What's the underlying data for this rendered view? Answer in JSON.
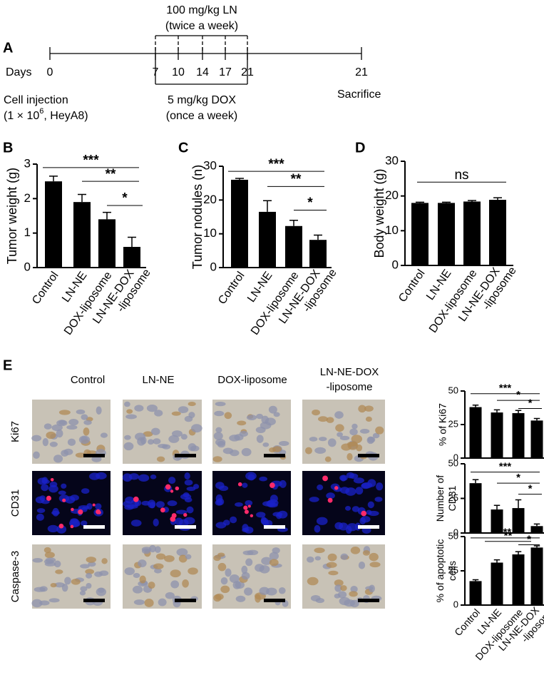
{
  "timeline": {
    "label": "A",
    "top_text": [
      "100 mg/kg LN",
      "(twice a week)"
    ],
    "axis_label": "Days",
    "days": [
      0,
      7,
      10,
      14,
      17,
      21,
      21
    ],
    "bottom_text": [
      "5 mg/kg DOX",
      "(once a week)"
    ],
    "start_text": [
      "Cell injection",
      "(1 × 10",
      "6",
      ", HeyA8)"
    ],
    "end_text": "Sacrifice"
  },
  "panel_labels": [
    "B",
    "C",
    "D",
    "E"
  ],
  "panel_e": {
    "columns": [
      "Control",
      "LN-NE",
      "DOX-liposome",
      [
        "LN-NE-DOX",
        "-liposome"
      ]
    ],
    "rows": [
      "Ki67",
      "CD31",
      "Caspase-3"
    ]
  },
  "chart_data": [
    {
      "type": "bar",
      "ylabel": "Tumor weight (g)",
      "categories": [
        "Control",
        "LN-NE",
        "DOX-liposome",
        [
          "LN-NE-DOX",
          "-liposome"
        ]
      ],
      "values": [
        2.5,
        1.9,
        1.4,
        0.6
      ],
      "errors": [
        0.15,
        0.22,
        0.2,
        0.28
      ],
      "color": "#000000",
      "ylim": [
        0,
        3
      ],
      "yticks": [
        0,
        1,
        2,
        3
      ],
      "significance": [
        {
          "label": "***",
          "y": 2.9
        },
        {
          "label": "**",
          "y": 2.5
        },
        {
          "label": "*",
          "y": 1.8
        }
      ]
    },
    {
      "type": "bar",
      "ylabel": "Tumor nodules (n)",
      "categories": [
        "Control",
        "LN-NE",
        "DOX-liposome",
        [
          "LN-NE-DOX",
          "-liposome"
        ]
      ],
      "values": [
        26,
        16.5,
        12.3,
        8.2
      ],
      "errors": [
        0.4,
        3.3,
        1.7,
        1.4
      ],
      "color": "#000000",
      "ylim": [
        0,
        30
      ],
      "yticks": [
        0,
        10,
        20,
        30
      ],
      "significance": [
        {
          "label": "***",
          "y": 28.5
        },
        {
          "label": "**",
          "y": 24
        },
        {
          "label": "*",
          "y": 17
        }
      ]
    },
    {
      "type": "bar",
      "ylabel": "Body weight (g)",
      "categories": [
        "Control",
        "LN-NE",
        "DOX-liposome",
        [
          "LN-NE-DOX",
          "-liposome"
        ]
      ],
      "values": [
        18,
        18,
        18.4,
        18.9
      ],
      "errors": [
        0.2,
        0.2,
        0.3,
        0.6
      ],
      "color": "#000000",
      "ylim": [
        0,
        30
      ],
      "yticks": [
        0,
        10,
        20,
        30
      ],
      "significance": [
        {
          "label": "ns",
          "y": 24
        }
      ]
    },
    {
      "type": "bar",
      "ylabel": [
        "% of Ki67"
      ],
      "values": [
        38,
        34,
        33.5,
        28
      ],
      "errors": [
        1.5,
        2,
        2,
        1.5
      ],
      "color": "#000000",
      "ylim": [
        0,
        50
      ],
      "yticks": [
        0,
        25,
        50
      ],
      "significance": [
        {
          "label": "***",
          "y": 48
        },
        {
          "label": "*",
          "y": 43
        },
        {
          "label": "*",
          "y": 37
        }
      ]
    },
    {
      "type": "bar",
      "ylabel": [
        "Number of",
        "CD31"
      ],
      "values": [
        36,
        17,
        18,
        5
      ],
      "errors": [
        2.5,
        3,
        6,
        1.5
      ],
      "color": "#000000",
      "ylim": [
        0,
        50
      ],
      "yticks": [
        0,
        25,
        50
      ],
      "significance": [
        {
          "label": "***",
          "y": 44
        },
        {
          "label": "*",
          "y": 36
        },
        {
          "label": "*",
          "y": 28
        }
      ]
    },
    {
      "type": "bar",
      "ylabel": [
        "% of  apoptotic",
        "cells"
      ],
      "categories": [
        "Control",
        "LN-NE",
        "DOX-liposome",
        [
          "LN-NE-DOX",
          "-liposome"
        ]
      ],
      "values": [
        17.5,
        31,
        37,
        42
      ],
      "errors": [
        1,
        2,
        2,
        1.2
      ],
      "color": "#000000",
      "ylim": [
        0,
        50
      ],
      "yticks": [
        0,
        25,
        50
      ],
      "significance": [
        {
          "label": "***",
          "y": 49
        },
        {
          "label": "**",
          "y": 46.5
        },
        {
          "label": "*",
          "y": 44
        }
      ]
    }
  ]
}
